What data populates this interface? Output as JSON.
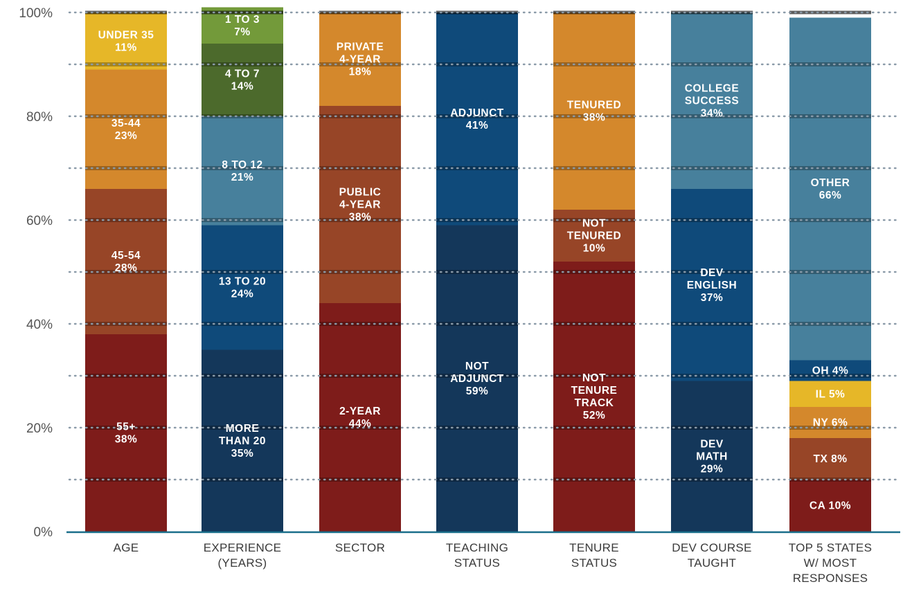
{
  "chart_data": {
    "type": "bar",
    "stacked": true,
    "ylim": [
      0,
      100
    ],
    "y_ticks": [
      "0%",
      "20%",
      "40%",
      "60%",
      "80%",
      "100%"
    ],
    "y_tick_values": [
      0,
      20,
      40,
      60,
      80,
      100
    ],
    "gridlines_dotted_every": 10,
    "categories": [
      [
        "AGE"
      ],
      [
        "EXPERIENCE",
        "(YEARS)"
      ],
      [
        "SECTOR"
      ],
      [
        "TEACHING",
        "STATUS"
      ],
      [
        "TENURE",
        "STATUS"
      ],
      [
        "DEV COURSE",
        "TAUGHT"
      ],
      [
        "TOP 5 STATES",
        "W/ MOST",
        "RESPONSES"
      ]
    ],
    "colors": {
      "dark_red": "#7e1c1a",
      "rust": "#974527",
      "orange": "#d4882c",
      "yellow": "#e6b728",
      "navy": "#14375a",
      "blue": "#0f4a7a",
      "steel": "#47809c",
      "dark_green": "#4c6a2c",
      "green": "#739a3a",
      "axis": "#1a6e8a",
      "grid": "#8a9aa8"
    },
    "bars": [
      {
        "category": "AGE",
        "segments": [
          {
            "label": [
              "55+",
              "38%"
            ],
            "value": 38,
            "color": "#7e1c1a"
          },
          {
            "label": [
              "45-54",
              "28%"
            ],
            "value": 28,
            "color": "#974527"
          },
          {
            "label": [
              "35-44",
              "23%"
            ],
            "value": 23,
            "color": "#d4882c"
          },
          {
            "label": [
              "UNDER 35",
              "11%"
            ],
            "value": 11,
            "color": "#e6b728"
          }
        ]
      },
      {
        "category": "EXPERIENCE (YEARS)",
        "segments": [
          {
            "label": [
              "MORE",
              "THAN 20",
              "35%"
            ],
            "value": 35,
            "color": "#14375a"
          },
          {
            "label": [
              "13 TO 20",
              "24%"
            ],
            "value": 24,
            "color": "#0f4a7a"
          },
          {
            "label": [
              "8 TO 12",
              "21%"
            ],
            "value": 21,
            "color": "#47809c"
          },
          {
            "label": [
              "4 TO 7",
              "14%"
            ],
            "value": 14,
            "color": "#4c6a2c"
          },
          {
            "label": [
              "1 TO 3",
              "7%"
            ],
            "value": 7,
            "color": "#739a3a"
          }
        ]
      },
      {
        "category": "SECTOR",
        "segments": [
          {
            "label": [
              "2-YEAR",
              "44%"
            ],
            "value": 44,
            "color": "#7e1c1a"
          },
          {
            "label": [
              "PUBLIC",
              "4-YEAR",
              "38%"
            ],
            "value": 38,
            "color": "#974527"
          },
          {
            "label": [
              "PRIVATE",
              "4-YEAR",
              "18%"
            ],
            "value": 18,
            "color": "#d4882c"
          }
        ]
      },
      {
        "category": "TEACHING STATUS",
        "segments": [
          {
            "label": [
              "NOT",
              "ADJUNCT",
              "59%"
            ],
            "value": 59,
            "color": "#14375a"
          },
          {
            "label": [
              "ADJUNCT",
              "41%"
            ],
            "value": 41,
            "color": "#0f4a7a"
          }
        ]
      },
      {
        "category": "TENURE STATUS",
        "segments": [
          {
            "label": [
              "NOT",
              "TENURE",
              "TRACK",
              "52%"
            ],
            "value": 52,
            "color": "#7e1c1a"
          },
          {
            "label": [
              "NOT",
              "TENURED",
              "10%"
            ],
            "value": 10,
            "color": "#974527"
          },
          {
            "label": [
              "TENURED",
              "38%"
            ],
            "value": 38,
            "color": "#d4882c"
          }
        ]
      },
      {
        "category": "DEV COURSE TAUGHT",
        "segments": [
          {
            "label": [
              "DEV",
              "MATH",
              "29%"
            ],
            "value": 29,
            "color": "#14375a"
          },
          {
            "label": [
              "DEV",
              "ENGLISH",
              "37%"
            ],
            "value": 37,
            "color": "#0f4a7a"
          },
          {
            "label": [
              "COLLEGE",
              "SUCCESS",
              "34%"
            ],
            "value": 34,
            "color": "#47809c"
          }
        ]
      },
      {
        "category": "TOP 5 STATES W/ MOST RESPONSES",
        "segments": [
          {
            "label": [
              "CA 10%"
            ],
            "value": 10,
            "color": "#7e1c1a"
          },
          {
            "label": [
              "TX 8%"
            ],
            "value": 8,
            "color": "#974527"
          },
          {
            "label": [
              "NY 6%"
            ],
            "value": 6,
            "color": "#d4882c"
          },
          {
            "label": [
              "IL 5%"
            ],
            "value": 5,
            "color": "#e6b728"
          },
          {
            "label": [
              "OH 4%"
            ],
            "value": 4,
            "color": "#0f4a7a"
          },
          {
            "label": [
              "OTHER",
              "66%"
            ],
            "value": 66,
            "color": "#47809c"
          }
        ]
      }
    ]
  }
}
